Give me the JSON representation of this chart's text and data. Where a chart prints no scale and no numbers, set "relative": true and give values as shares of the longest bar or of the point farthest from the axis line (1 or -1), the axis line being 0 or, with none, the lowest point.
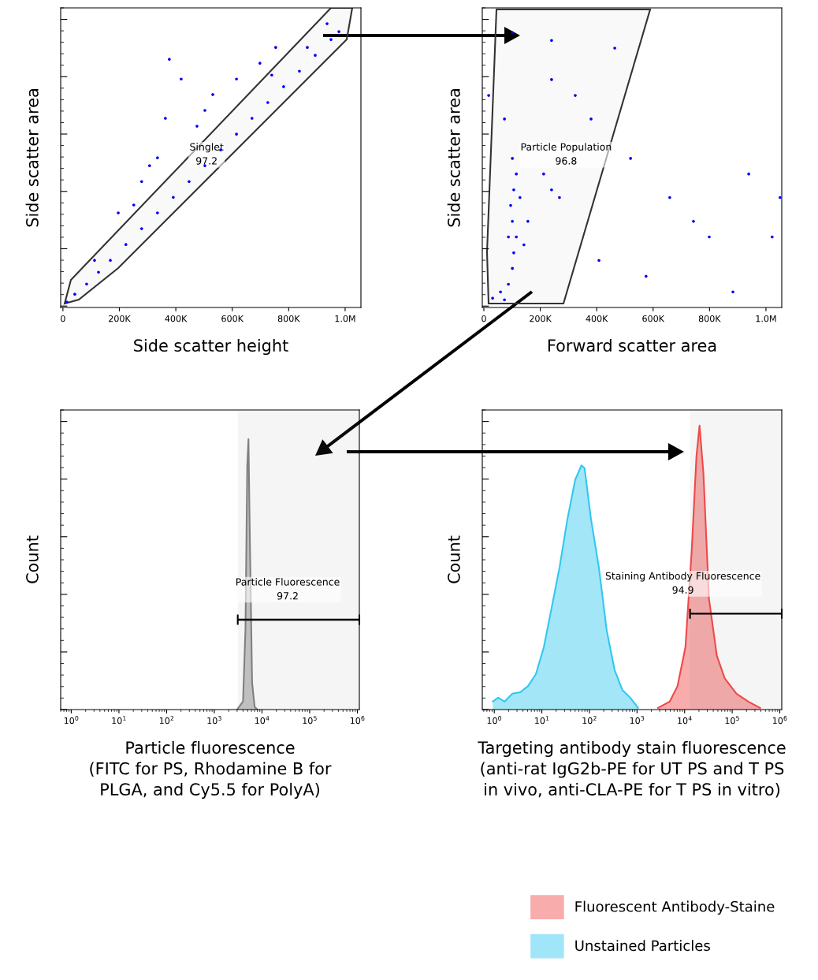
{
  "chart_data": [
    {
      "type": "scatter",
      "xlabel": "Side scatter height",
      "ylabel": "Side scatter area",
      "relative": true,
      "tick_labels": "x",
      "marker": "circle",
      "grid": false,
      "xlim": [
        -8000,
        1056000
      ],
      "xticks": [
        0,
        {
          "value": 200000,
          "label": "200K"
        },
        {
          "value": 400000,
          "label": "400K"
        },
        {
          "value": 600000,
          "label": "600K"
        },
        {
          "value": 800000,
          "label": "800K"
        },
        {
          "value": 1000000,
          "label": "1.0M"
        }
      ],
      "series": [
        {
          "color": "#0000ff",
          "x": [
            14000,
            42000,
            84000,
            126000,
            168000,
            223000,
            279000,
            335000,
            391000,
            447000,
            503000,
            559000,
            615000,
            670000,
            726000,
            782000,
            838000,
            894000,
            950000,
            978000,
            196000,
            279000,
            335000,
            363000,
            419000,
            475000,
            531000,
            615000,
            698000,
            754000,
            112000,
            251000,
            307000,
            503000,
            740000,
            866000,
            936000,
            377000
          ],
          "values": [
            0.014,
            0.042,
            0.078,
            0.12,
            0.162,
            0.218,
            0.274,
            0.33,
            0.385,
            0.441,
            0.497,
            0.553,
            0.609,
            0.665,
            0.721,
            0.777,
            0.832,
            0.888,
            0.944,
            0.972,
            0.33,
            0.441,
            0.525,
            0.665,
            0.804,
            0.637,
            0.749,
            0.804,
            0.86,
            0.916,
            0.162,
            0.358,
            0.497,
            0.693,
            0.818,
            0.916,
            1.0,
            0.874
          ]
        }
      ],
      "annotations": [
        "Singlet\n97.2"
      ]
    },
    {
      "type": "scatter",
      "xlabel": "Forward scatter area",
      "ylabel": "Side scatter area",
      "relative": true,
      "tick_labels": "x",
      "marker": "circle",
      "grid": false,
      "xlim": [
        -5600,
        1056000
      ],
      "xticks": [
        0,
        {
          "value": 200000,
          "label": "200K"
        },
        {
          "value": 400000,
          "label": "400K"
        },
        {
          "value": 600000,
          "label": "600K"
        },
        {
          "value": 800000,
          "label": "800K"
        },
        {
          "value": 1000000,
          "label": "1.0M"
        }
      ],
      "series": [
        {
          "color": "#0000ff",
          "x": [
            73000,
            87000,
            101000,
            106000,
            115000,
            101000,
            95000,
            106000,
            115000,
            101000,
            128000,
            87000,
            142000,
            59000,
            31000,
            156000,
            240000,
            212000,
            268000,
            240000,
            380000,
            520000,
            659000,
            799000,
            939000,
            1022000,
            408000,
            575000,
            743000,
            101000,
            240000,
            324000,
            464000,
            883000,
            1050000,
            17000,
            73000
          ],
          "values": [
            0.023,
            0.08,
            0.138,
            0.195,
            0.253,
            0.31,
            0.368,
            0.425,
            0.483,
            0.54,
            0.397,
            0.253,
            0.224,
            0.052,
            0.029,
            0.31,
            0.425,
            0.483,
            0.397,
            0.828,
            0.684,
            0.54,
            0.397,
            0.253,
            0.483,
            0.253,
            0.167,
            0.109,
            0.31,
            1.0,
            0.971,
            0.77,
            0.943,
            0.052,
            0.397,
            0.77,
            0.684
          ]
        }
      ],
      "annotations": [
        "Particle Population\n96.8"
      ]
    },
    {
      "type": "area",
      "xlabel": "Particle fluorescence\n(FITC for PS, Rhodamine B for\nPLGA, and Cy5.5 for PolyA)",
      "ylabel": "Count",
      "relative": true,
      "tick_labels": "x",
      "log": "x",
      "grid": false,
      "xlim": [
        0.6,
        1100000
      ],
      "xticks": [
        {
          "value": 1,
          "label": "10$^{0}$"
        },
        {
          "value": 10,
          "label": "10$^{1}$"
        },
        {
          "value": 100,
          "label": "10$^{2}$"
        },
        {
          "value": 1000,
          "label": "10$^{3}$"
        },
        {
          "value": 10000,
          "label": "10$^{4}$"
        },
        {
          "value": 100000,
          "label": "10$^{5}$"
        },
        {
          "value": 1000000,
          "label": "10$^{6}$"
        }
      ],
      "series": [
        {
          "color": "#808080",
          "x": [
            3000,
            4000,
            4500,
            4900,
            5200,
            5600,
            6200,
            7000,
            8000
          ],
          "values": [
            0,
            0.03,
            0.3,
            0.9,
            1.0,
            0.6,
            0.1,
            0.01,
            0
          ]
        }
      ],
      "bands": [
        {
          "axis": "x",
          "from": 3100,
          "to": 1100000,
          "label": "Particle Fluorescence\n97.2"
        }
      ]
    },
    {
      "type": "area",
      "xlabel": "Targeting antibody stain fluorescence\n(anti-rat IgG2b-PE for UT PS and T PS\nin vivo, anti-CLA-PE for T PS in vitro)",
      "ylabel": "Count",
      "relative": true,
      "tick_labels": "x",
      "log": "x",
      "grid": false,
      "legend": "bottom",
      "xlim": [
        0.56,
        1100000
      ],
      "xticks": [
        {
          "value": 1,
          "label": "10$^{0}$"
        },
        {
          "value": 10,
          "label": "10$^{1}$"
        },
        {
          "value": 100,
          "label": "10$^{2}$"
        },
        {
          "value": 1000,
          "label": "10$^{3}$"
        },
        {
          "value": 10000,
          "label": "10$^{4}$"
        },
        {
          "value": 100000,
          "label": "10$^{5}$"
        },
        {
          "value": 1000000,
          "label": "10$^{6}$"
        }
      ],
      "series": [
        {
          "name": "Fluorescent Antibody-Staine",
          "color": "#f04848",
          "x": [
            2750,
            4850,
            7100,
            10400,
            14100,
            17700,
            20600,
            24900,
            32500,
            47600,
            69700,
            123000,
            218000,
            386000
          ],
          "values": [
            0.006,
            0.028,
            0.083,
            0.22,
            0.56,
            0.89,
            1.0,
            0.83,
            0.39,
            0.19,
            0.11,
            0.056,
            0.028,
            0.006
          ]
        },
        {
          "name": "Unstained Particles",
          "color": "#30c8f0",
          "x": [
            0.93,
            1.21,
            1.64,
            2.4,
            3.51,
            5.13,
            7.5,
            11,
            16.1,
            23.5,
            34.4,
            50.3,
            68,
            79,
            108,
            158,
            230,
            337,
            493,
            720,
            1050
          ],
          "values": [
            0.028,
            0.042,
            0.028,
            0.056,
            0.061,
            0.083,
            0.125,
            0.22,
            0.36,
            0.5,
            0.67,
            0.81,
            0.86,
            0.85,
            0.67,
            0.5,
            0.28,
            0.14,
            0.069,
            0.042,
            0.006
          ]
        }
      ],
      "bands": [
        {
          "axis": "x",
          "from": 13000,
          "to": 1100000,
          "label": "Staining Antibody Fluorescence\n94.9"
        }
      ]
    }
  ]
}
